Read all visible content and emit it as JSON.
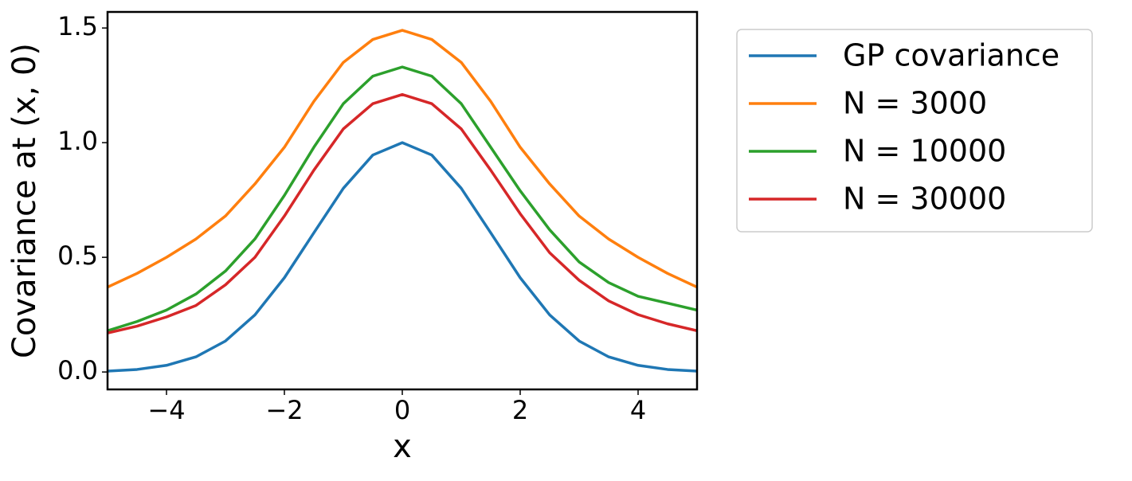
{
  "chart_data": {
    "type": "line",
    "x_label": "x",
    "y_label": "Covariance at (x, 0)",
    "x": [
      -5,
      -4.5,
      -4,
      -3.5,
      -3,
      -2.5,
      -2,
      -1.5,
      -1,
      -0.5,
      0,
      0.5,
      1,
      1.5,
      2,
      2.5,
      3,
      3.5,
      4,
      4.5,
      5
    ],
    "series": [
      {
        "name": "GP covariance",
        "color": "#1f77b4",
        "values": [
          0.004,
          0.011,
          0.029,
          0.066,
          0.135,
          0.249,
          0.411,
          0.607,
          0.801,
          0.946,
          1.0,
          0.946,
          0.801,
          0.607,
          0.411,
          0.249,
          0.135,
          0.066,
          0.029,
          0.011,
          0.004
        ]
      },
      {
        "name": "N = 3000",
        "color": "#ff7f0e",
        "values": [
          0.37,
          0.43,
          0.5,
          0.58,
          0.68,
          0.82,
          0.98,
          1.18,
          1.35,
          1.45,
          1.49,
          1.45,
          1.35,
          1.18,
          0.98,
          0.82,
          0.68,
          0.58,
          0.5,
          0.43,
          0.37
        ]
      },
      {
        "name": "N = 10000",
        "color": "#2ca02c",
        "values": [
          0.18,
          0.22,
          0.27,
          0.34,
          0.44,
          0.58,
          0.77,
          0.98,
          1.17,
          1.29,
          1.33,
          1.29,
          1.17,
          0.98,
          0.79,
          0.62,
          0.48,
          0.39,
          0.33,
          0.3,
          0.27
        ]
      },
      {
        "name": "N = 30000",
        "color": "#d62728",
        "values": [
          0.17,
          0.2,
          0.24,
          0.29,
          0.38,
          0.5,
          0.68,
          0.88,
          1.06,
          1.17,
          1.21,
          1.17,
          1.06,
          0.88,
          0.69,
          0.52,
          0.4,
          0.31,
          0.25,
          0.21,
          0.18
        ]
      }
    ],
    "xlim": [
      -5,
      5
    ],
    "xticks": [
      {
        "value": -4,
        "label": "−4"
      },
      {
        "value": -2,
        "label": "−2"
      },
      0,
      2,
      4
    ],
    "ylim": [
      -0.076,
      1.57
    ],
    "yticks": [
      {
        "value": 0,
        "label": "0.0"
      },
      0.5,
      {
        "value": 1,
        "label": "1.0"
      },
      1.5
    ],
    "grid": false,
    "legend": "outside right"
  }
}
